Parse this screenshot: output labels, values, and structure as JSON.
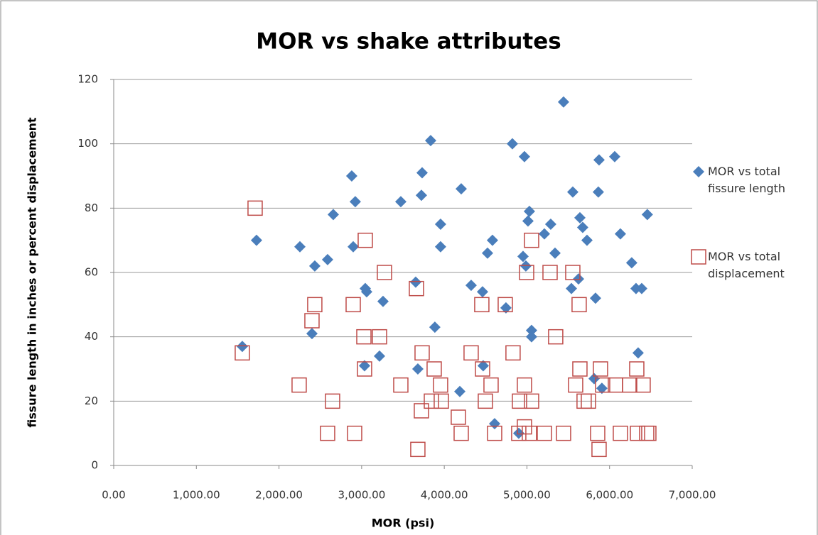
{
  "chart_data": {
    "type": "scatter",
    "title": "MOR vs shake attributes",
    "x_label": "MOR (psi)",
    "y_label": "fissure length in inches or  percent displacement",
    "xlim": [
      0,
      7000
    ],
    "ylim": [
      0,
      120
    ],
    "xticks": [
      {
        "value": 0,
        "label": "0.00"
      },
      {
        "value": 1000,
        "label": "1,000.00"
      },
      {
        "value": 2000,
        "label": "2,000.00"
      },
      {
        "value": 3000,
        "label": "3,000.00"
      },
      {
        "value": 4000,
        "label": "4,000.00"
      },
      {
        "value": 5000,
        "label": "5,000.00"
      },
      {
        "value": 6000,
        "label": "6,000.00"
      },
      {
        "value": 7000,
        "label": "7,000.00"
      }
    ],
    "yticks": [
      0,
      20,
      40,
      60,
      80,
      100,
      120
    ],
    "grid": true,
    "legend": "right",
    "series": [
      {
        "name": "MOR vs total fissure length",
        "color": "#4a7ebb",
        "marker": "diamond",
        "x": [
          1556,
          1728,
          2253,
          2433,
          2399,
          2588,
          2657,
          2880,
          2923,
          2898,
          3044,
          3061,
          3035,
          3216,
          3259,
          3474,
          3654,
          3723,
          3732,
          3680,
          3835,
          3886,
          3955,
          3955,
          4205,
          4188,
          4325,
          4463,
          4471,
          4523,
          4583,
          4609,
          4746,
          4824,
          4901,
          4970,
          4953,
          4987,
          5013,
          5030,
          5056,
          5056,
          5211,
          5288,
          5340,
          5443,
          5555,
          5538,
          5624,
          5641,
          5675,
          5727,
          5813,
          5830,
          5873,
          5864,
          5907,
          6062,
          6131,
          6268,
          6320,
          6389,
          6346,
          6457
        ],
        "values": [
          37,
          70,
          68,
          62,
          41,
          64,
          78,
          90,
          82,
          68,
          55,
          54,
          31,
          34,
          51,
          82,
          57,
          84,
          91,
          30,
          101,
          43,
          75,
          68,
          86,
          23,
          56,
          54,
          31,
          66,
          70,
          13,
          49,
          100,
          10,
          96,
          65,
          62,
          76,
          79,
          42,
          40,
          72,
          75,
          66,
          113,
          85,
          55,
          58,
          77,
          74,
          70,
          27,
          52,
          95,
          85,
          24,
          96,
          72,
          63,
          55,
          55,
          35,
          78
        ]
      },
      {
        "name": "MOR vs total displacement",
        "color": "#be4b48",
        "marker": "square",
        "x": [
          1556,
          1711,
          2244,
          2399,
          2433,
          2588,
          2648,
          2898,
          2915,
          3044,
          3027,
          3035,
          3216,
          3276,
          3474,
          3663,
          3680,
          3732,
          3723,
          3878,
          3844,
          3955,
          3964,
          4170,
          4205,
          4325,
          4454,
          4463,
          4497,
          4566,
          4609,
          4738,
          4832,
          4901,
          4910,
          4970,
          4970,
          4996,
          5030,
          5056,
          5056,
          5211,
          5280,
          5348,
          5443,
          5555,
          5589,
          5632,
          5641,
          5692,
          5744,
          5856,
          5873,
          5890,
          5916,
          6071,
          6131,
          6243,
          6329,
          6338,
          6406,
          6449,
          6475
        ],
        "values": [
          35,
          80,
          25,
          45,
          50,
          10,
          20,
          50,
          10,
          70,
          40,
          30,
          40,
          60,
          25,
          55,
          5,
          35,
          17,
          30,
          20,
          25,
          20,
          15,
          10,
          35,
          50,
          30,
          20,
          25,
          10,
          50,
          35,
          10,
          20,
          25,
          12,
          60,
          10,
          20,
          70,
          10,
          60,
          40,
          10,
          60,
          25,
          50,
          30,
          20,
          20,
          10,
          5,
          30,
          25,
          25,
          10,
          25,
          30,
          10,
          25,
          10,
          10
        ]
      }
    ]
  }
}
